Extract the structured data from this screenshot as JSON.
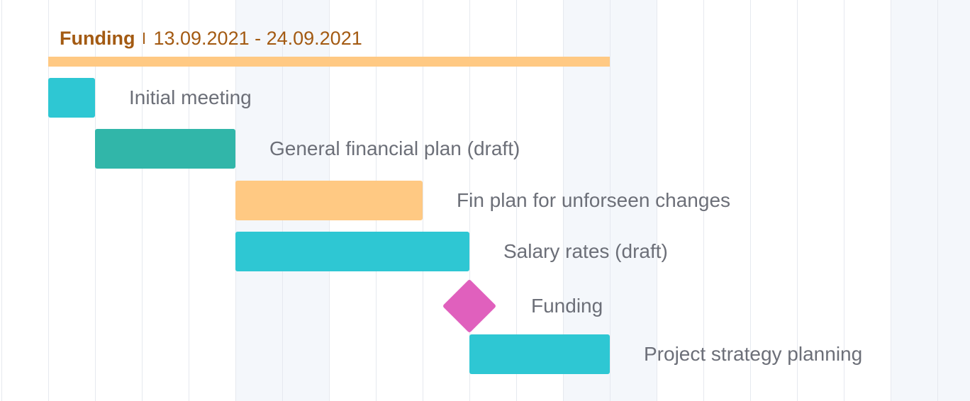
{
  "colors": {
    "group": "#ffc983",
    "group_text": "#a35a12",
    "cyan": "#2ec7d3",
    "teal": "#31b6a9",
    "peach": "#ffc983",
    "magenta": "#e060bd",
    "label": "#6c6f78",
    "gridline": "#e6e9ef",
    "weekend": "#f4f7fb"
  },
  "timeline": {
    "days": 20,
    "weekend_day_indices": [
      4,
      5,
      11,
      12,
      18,
      19
    ]
  },
  "group": {
    "name": "Funding",
    "date_range": "13.09.2021 - 24.09.2021",
    "start_day": 0,
    "end_day": 12
  },
  "tasks": [
    {
      "name": "Initial meeting",
      "type": "task",
      "start_day": 0,
      "end_day": 1,
      "color": "#2ec7d3"
    },
    {
      "name": "General financial plan (draft)",
      "type": "task",
      "start_day": 1,
      "end_day": 4,
      "color": "#31b6a9"
    },
    {
      "name": "Fin plan for unforseen changes",
      "type": "task",
      "start_day": 4,
      "end_day": 8,
      "color": "#ffc983"
    },
    {
      "name": "Salary rates (draft)",
      "type": "task",
      "start_day": 4,
      "end_day": 9,
      "color": "#2ec7d3"
    },
    {
      "name": "Funding",
      "type": "milestone",
      "start_day": 9,
      "end_day": 9,
      "color": "#e060bd"
    },
    {
      "name": "Project strategy planning",
      "type": "task",
      "start_day": 9,
      "end_day": 12,
      "color": "#2ec7d3"
    }
  ]
}
